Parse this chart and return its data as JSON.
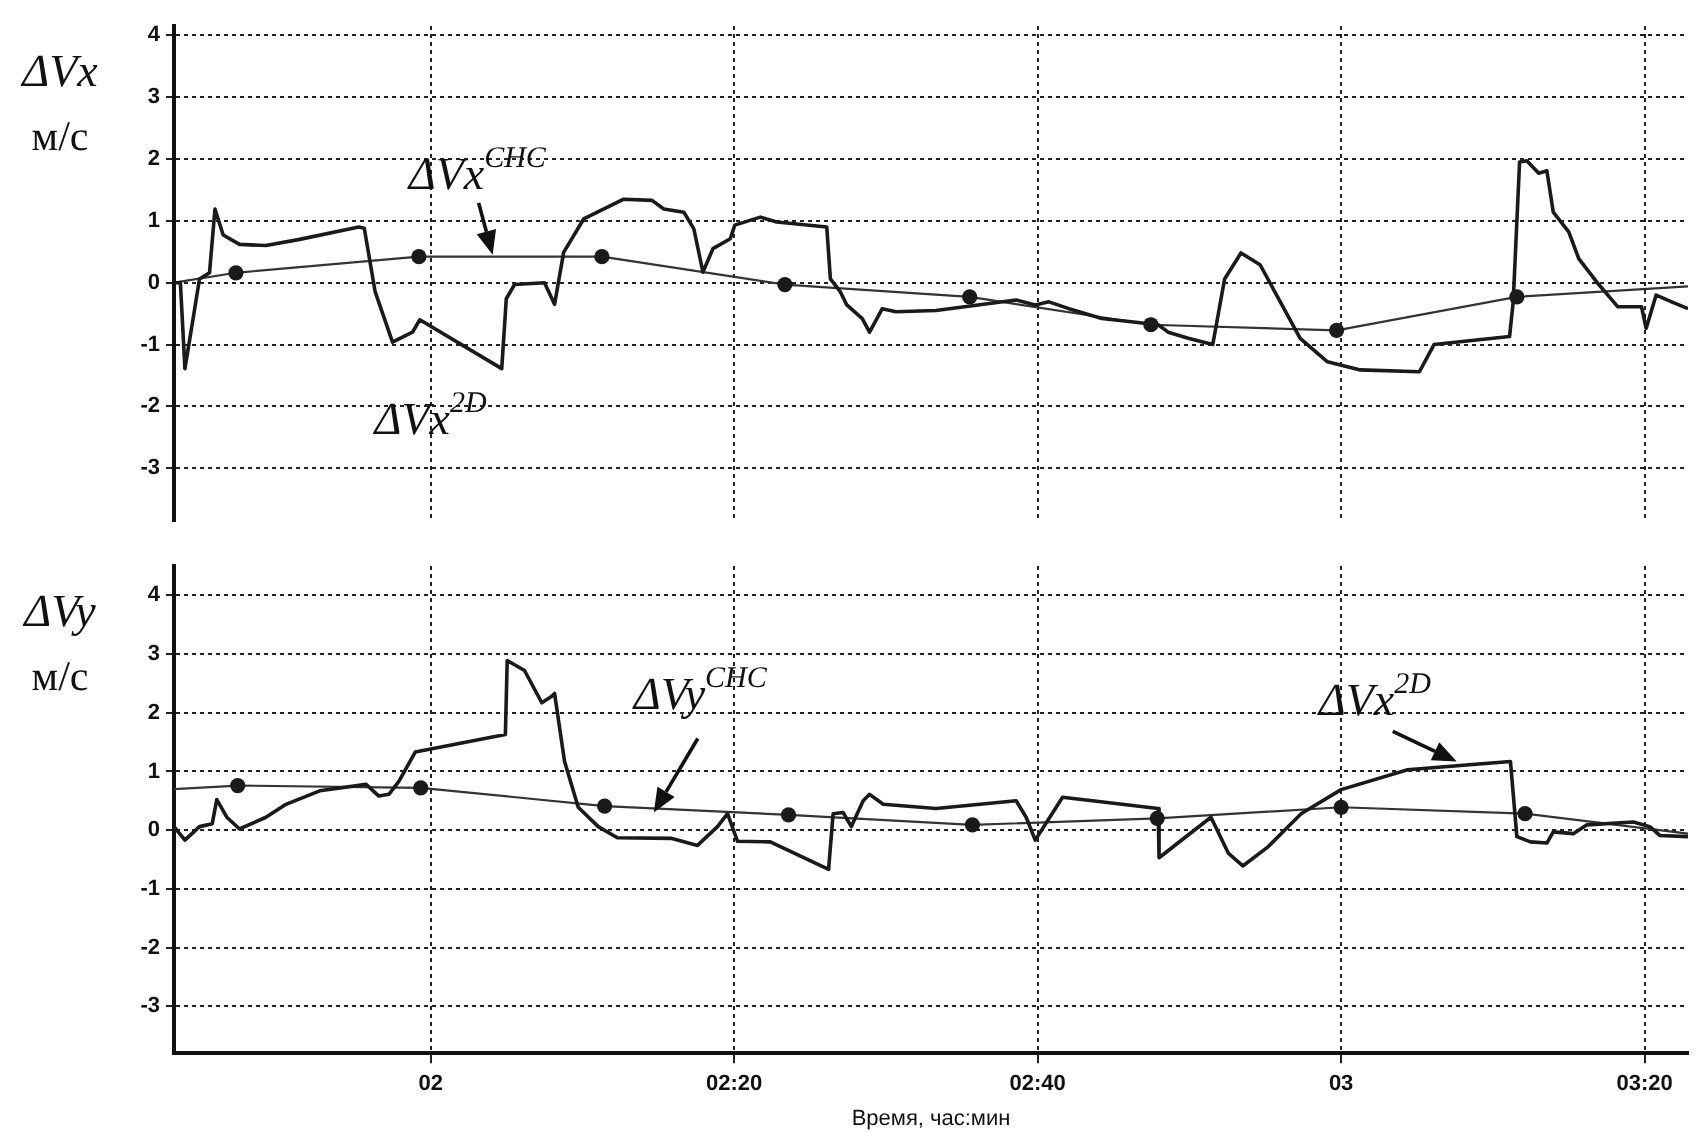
{
  "chart_data": [
    {
      "type": "line",
      "ylabel": "ΔVx\nм/с",
      "xlim": [
        1.718,
        3.381
      ],
      "xticks": [
        {
          "value": 2,
          "label": null
        },
        {
          "value": 2.3333,
          "label": null
        },
        {
          "value": 2.6667,
          "label": null
        },
        {
          "value": 3,
          "label": null
        },
        {
          "value": 3.3333,
          "label": null
        }
      ],
      "ylim": [
        -3.85,
        4.15
      ],
      "yticks": [
        -3,
        -2,
        -1,
        0,
        1,
        2,
        3,
        4
      ],
      "grid": true,
      "tick_labels": "y",
      "legend": false,
      "series": [
        {
          "color": "#1a1a1a",
          "x": [
            1.718,
            1.725,
            1.73,
            1.739,
            1.746,
            1.757,
            1.763,
            1.772,
            1.79,
            1.819,
            1.856,
            1.921,
            1.927,
            1.939,
            1.958,
            1.98,
            1.988,
            2.078,
            2.083,
            2.092,
            2.125,
            2.136,
            2.146,
            2.168,
            2.212,
            2.243,
            2.256,
            2.278,
            2.289,
            2.299,
            2.31,
            2.329,
            2.334,
            2.362,
            2.38,
            2.435,
            2.439,
            2.45,
            2.457,
            2.474,
            2.482,
            2.496,
            2.511,
            2.555,
            2.643,
            2.664,
            2.679,
            2.701,
            2.737,
            2.799,
            2.81,
            2.832,
            2.859,
            2.872,
            2.89,
            2.911,
            2.955,
            2.985,
            3.021,
            3.086,
            3.102,
            3.185,
            3.189,
            3.196,
            3.204,
            3.217,
            3.226,
            3.233,
            3.25,
            3.261,
            3.283,
            3.304,
            3.33,
            3.335,
            3.346,
            3.363,
            3.381
          ],
          "values": [
            0,
            0,
            -1.39,
            -0.58,
            0.06,
            0.16,
            1.19,
            0.77,
            0.62,
            0.6,
            0.7,
            0.9,
            0.88,
            -0.15,
            -0.96,
            -0.8,
            -0.6,
            -1.39,
            -0.26,
            -0.03,
            0,
            -0.35,
            0.49,
            1.03,
            1.35,
            1.33,
            1.19,
            1.14,
            0.87,
            0.17,
            0.55,
            0.71,
            0.93,
            1.06,
            0.98,
            0.9,
            0.06,
            -0.15,
            -0.36,
            -0.58,
            -0.8,
            -0.42,
            -0.47,
            -0.45,
            -0.28,
            -0.36,
            -0.31,
            -0.42,
            -0.58,
            -0.68,
            -0.8,
            -0.9,
            -1.0,
            0.06,
            0.48,
            0.29,
            -0.9,
            -1.28,
            -1.41,
            -1.44,
            -1.0,
            -0.87,
            -0.31,
            1.95,
            1.97,
            1.77,
            1.81,
            1.14,
            0.82,
            0.39,
            -0.03,
            -0.39,
            -0.39,
            -0.74,
            -0.2,
            -0.31,
            -0.42
          ]
        },
        {
          "color": "#333333",
          "marker": "none",
          "x": [
            1.718,
            1.786,
            1.987,
            2.188,
            2.389,
            2.592,
            2.791,
            2.995,
            3.193,
            3.381
          ],
          "values": [
            0,
            0.16,
            0.42,
            0.42,
            -0.03,
            -0.23,
            -0.68,
            -0.77,
            -0.23,
            -0.06
          ]
        },
        {
          "type": "scatter",
          "color": "#1a1a1a",
          "marker": "circle",
          "x": [
            1.786,
            1.987,
            2.188,
            2.389,
            2.592,
            2.791,
            2.995,
            3.193
          ],
          "values": [
            0.16,
            0.42,
            0.42,
            -0.03,
            -0.23,
            -0.68,
            -0.77,
            -0.23
          ]
        }
      ],
      "annotations": [
        {
          "text": "ΔVx$^{CHC}$",
          "x": 2.068,
          "y": 0.45
        },
        {
          "text": "ΔVx$^{2D}$",
          "x": 2.07,
          "y": -1.35
        }
      ]
    },
    {
      "type": "line",
      "ylabel": "ΔVy\nм/с",
      "xlabel": "Время, час:мин",
      "xlim": [
        1.718,
        3.381
      ],
      "xticks": [
        {
          "value": 2,
          "label": "02"
        },
        {
          "value": 2.3333,
          "label": "02:20"
        },
        {
          "value": 2.6667,
          "label": "02:40"
        },
        {
          "value": 3,
          "label": "03"
        },
        {
          "value": 3.3333,
          "label": "03:20"
        }
      ],
      "ylim": [
        -3.8,
        4.5
      ],
      "yticks": [
        -3,
        -2,
        -1,
        0,
        1,
        2,
        3,
        4
      ],
      "grid": true,
      "legend": false,
      "series": [
        {
          "color": "#1a1a1a",
          "x": [
            1.718,
            1.73,
            1.746,
            1.76,
            1.765,
            1.776,
            1.79,
            1.819,
            1.841,
            1.878,
            1.929,
            1.943,
            1.954,
            1.965,
            1.983,
            2.082,
            2.084,
            2.103,
            2.122,
            2.133,
            2.136,
            2.147,
            2.162,
            2.184,
            2.205,
            2.264,
            2.293,
            2.315,
            2.326,
            2.337,
            2.373,
            2.437,
            2.442,
            2.453,
            2.462,
            2.475,
            2.482,
            2.497,
            2.555,
            2.643,
            2.654,
            2.664,
            2.694,
            2.799,
            2.8,
            2.857,
            2.876,
            2.892,
            2.92,
            2.956,
            3.0,
            3.073,
            3.186,
            3.193,
            3.208,
            3.226,
            3.233,
            3.255,
            3.27,
            3.321,
            3.339,
            3.35,
            3.381
          ],
          "values": [
            0.06,
            -0.17,
            0.06,
            0.11,
            0.52,
            0.22,
            0.02,
            0.22,
            0.44,
            0.67,
            0.78,
            0.58,
            0.61,
            0.83,
            1.33,
            1.63,
            2.89,
            2.72,
            2.17,
            2.28,
            2.33,
            1.17,
            0.39,
            0.06,
            -0.13,
            -0.14,
            -0.26,
            0.06,
            0.28,
            -0.19,
            -0.2,
            -0.67,
            0.28,
            0.3,
            0.06,
            0.5,
            0.61,
            0.44,
            0.37,
            0.5,
            0.22,
            -0.17,
            0.56,
            0.37,
            -0.47,
            0.22,
            -0.39,
            -0.61,
            -0.28,
            0.28,
            0.69,
            1.03,
            1.17,
            -0.11,
            -0.2,
            -0.22,
            -0.03,
            -0.06,
            0.09,
            0.14,
            0.06,
            -0.09,
            -0.11
          ]
        },
        {
          "color": "#333333",
          "marker": "none",
          "x": [
            1.718,
            1.788,
            1.989,
            2.191,
            2.393,
            2.595,
            2.798,
            3.0,
            3.202,
            3.381
          ],
          "values": [
            0.7,
            0.76,
            0.72,
            0.41,
            0.26,
            0.09,
            0.2,
            0.39,
            0.28,
            -0.06
          ]
        },
        {
          "type": "scatter",
          "color": "#1a1a1a",
          "marker": "circle",
          "x": [
            1.788,
            1.989,
            2.191,
            2.393,
            2.595,
            2.798,
            3.0,
            3.202
          ],
          "values": [
            0.76,
            0.72,
            0.41,
            0.26,
            0.09,
            0.2,
            0.39,
            0.28
          ]
        }
      ],
      "annotations": [
        {
          "text": "ΔVy$^{CHC}$",
          "x": 2.245,
          "y": 0.3
        },
        {
          "text": "ΔVx$^{2D}$",
          "x": 3.127,
          "y": 1.17
        }
      ]
    }
  ]
}
